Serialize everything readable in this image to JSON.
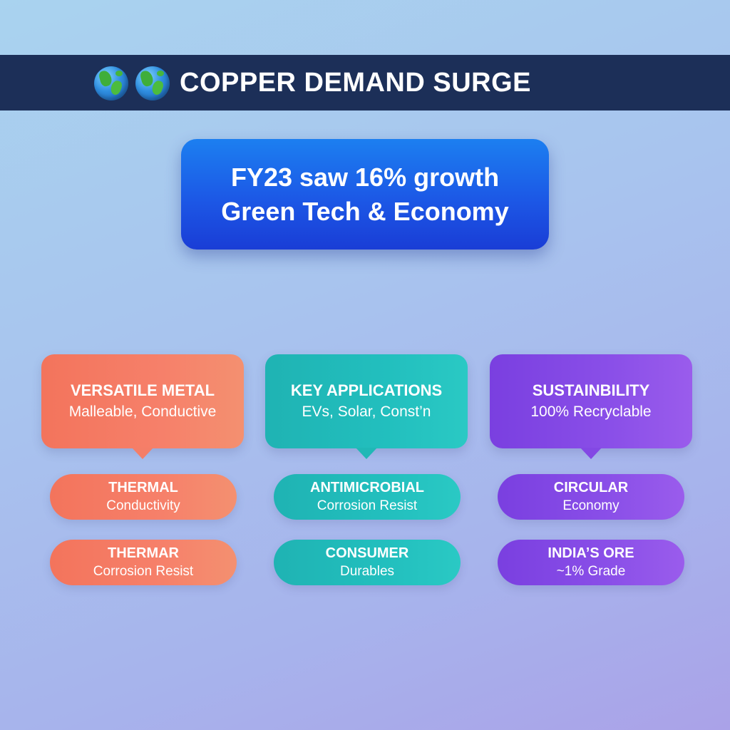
{
  "header": {
    "title": "COPPER DEMAND SURGE",
    "icons": [
      "globe-icon",
      "globe-icon"
    ]
  },
  "hero": {
    "line1": "FY23 saw 16% growth",
    "line2": "Green Tech & Economy"
  },
  "columns": [
    {
      "color": "#f47e68",
      "card": {
        "title": "VERSATILE METAL",
        "subtitle": "Malleable, Conductive"
      },
      "pills": [
        {
          "title": "THERMAL",
          "subtitle": "Conductivity"
        },
        {
          "title": "THERMAR",
          "subtitle": "Corrosion Resist"
        }
      ]
    },
    {
      "color": "#20b8b6",
      "card": {
        "title": "KEY APPLICATIONS",
        "subtitle": "EVs, Solar, Const’n"
      },
      "pills": [
        {
          "title": "ANTIMICROBIAL",
          "subtitle": "Corrosion Resist"
        },
        {
          "title": "CONSUMER",
          "subtitle": "Durables"
        }
      ]
    },
    {
      "color": "#8348e4",
      "card": {
        "title": "SUSTAINBILITY",
        "subtitle": "100% Recryclable"
      },
      "pills": [
        {
          "title": "CIRCULAR",
          "subtitle": "Economy"
        },
        {
          "title": "INDIA’S ORE",
          "subtitle": "~1% Grade"
        }
      ]
    }
  ]
}
